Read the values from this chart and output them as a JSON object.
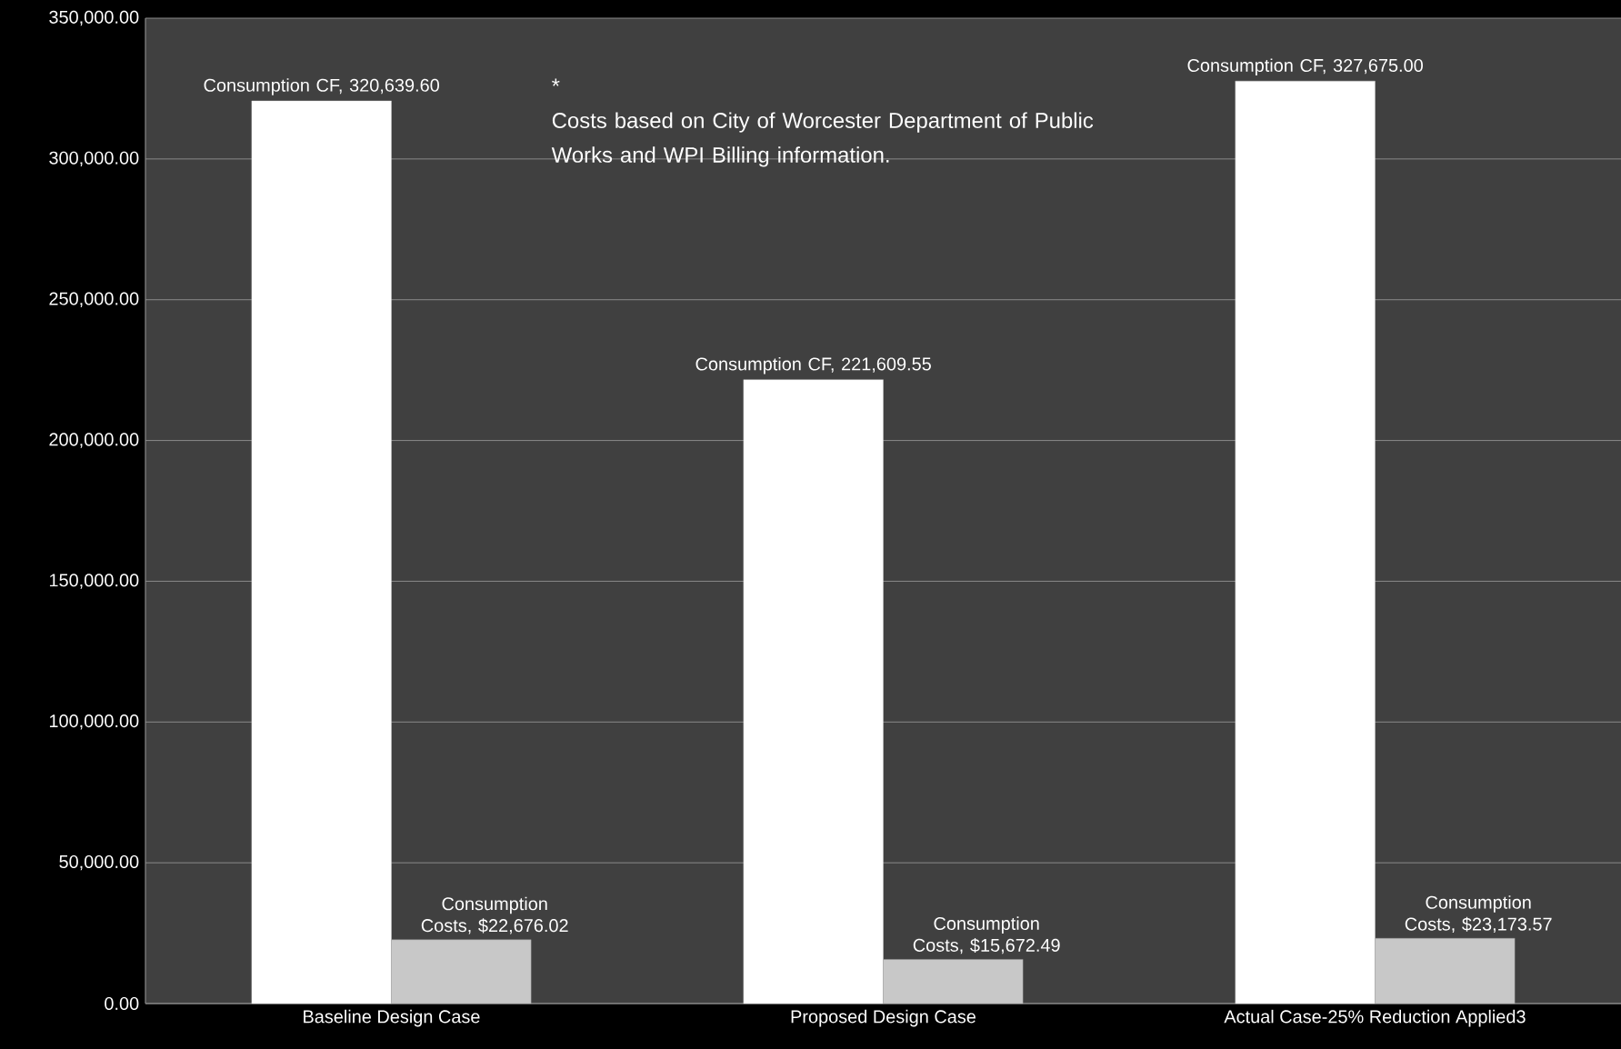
{
  "chart_data": {
    "type": "bar",
    "categories": [
      "Baseline Design Case",
      "Proposed Design Case",
      "Actual Case-25% Reduction Applied3"
    ],
    "series": [
      {
        "color": "#ffffff",
        "values": [
          320639.6,
          221609.55,
          327675.0
        ],
        "value_labels": [
          "Consumption CF, 320,639.60",
          "Consumption CF, 221,609.55",
          "Consumption CF, 327,675.00"
        ]
      },
      {
        "color": "#c8c8c8",
        "values": [
          22676.02,
          15672.49,
          23173.57
        ],
        "value_labels": [
          "Consumption Costs, $22,676.02",
          "Consumption Costs, $15,672.49",
          "Consumption Costs, $23,173.57"
        ]
      }
    ],
    "ylim": [
      0,
      350000
    ],
    "yticks": [
      {
        "value": 0,
        "label": "0.00"
      },
      {
        "value": 50000,
        "label": "50,000.00"
      },
      {
        "value": 100000,
        "label": "100,000.00"
      },
      {
        "value": 150000,
        "label": "150,000.00"
      },
      {
        "value": 200000,
        "label": "200,000.00"
      },
      {
        "value": 250000,
        "label": "250,000.00"
      },
      {
        "value": 300000,
        "label": "300,000.00"
      },
      {
        "value": 350000,
        "label": "350,000.00"
      }
    ],
    "grid": "y",
    "annotations": [
      "*",
      "Costs based on City of Worcester Department of Public Works  and  WPI Billing information."
    ]
  }
}
